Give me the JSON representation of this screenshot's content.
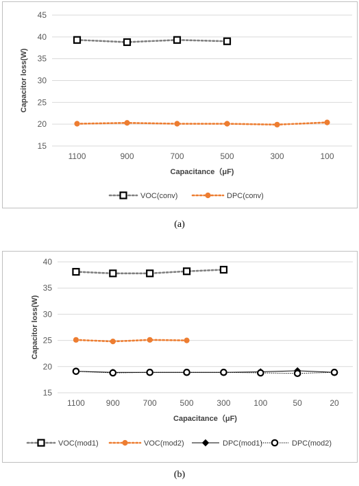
{
  "captions": {
    "a": "(a)",
    "b": "(b)"
  },
  "chart_data": [
    {
      "type": "line",
      "title": "",
      "xlabel": "Capacitance（μF)",
      "ylabel": "Capacitor loss(W)",
      "ylim": [
        15,
        45
      ],
      "yticks": [
        15,
        20,
        25,
        30,
        35,
        40,
        45
      ],
      "categories": [
        "1100",
        "900",
        "700",
        "500",
        "300",
        "100"
      ],
      "grid": "horizontal",
      "legend": "bottom",
      "series": [
        {
          "name": "VOC(conv)",
          "values": [
            39.3,
            38.8,
            39.3,
            39.0,
            null,
            null
          ],
          "color": "#7f7f7f",
          "marker": "square-open",
          "line": "dotted"
        },
        {
          "name": "DPC(conv)",
          "values": [
            20.1,
            20.3,
            20.1,
            20.1,
            19.9,
            20.4
          ],
          "color": "#ed7d31",
          "marker": "circle-filled",
          "line": "dotted"
        }
      ]
    },
    {
      "type": "line",
      "title": "",
      "xlabel": "Capacitance（μF)",
      "ylabel": "Capacitor loss(W)",
      "ylim": [
        15,
        40
      ],
      "yticks": [
        15,
        20,
        25,
        30,
        35,
        40
      ],
      "categories": [
        "1100",
        "900",
        "700",
        "500",
        "300",
        "100",
        "50",
        "20"
      ],
      "grid": "horizontal",
      "legend": "bottom",
      "series": [
        {
          "name": "VOC(mod1)",
          "values": [
            38.1,
            37.8,
            37.8,
            38.2,
            38.5,
            null,
            null,
            null
          ],
          "color": "#7f7f7f",
          "marker": "square-open",
          "line": "dotted"
        },
        {
          "name": "VOC(mod2)",
          "values": [
            25.1,
            24.8,
            25.1,
            25.0,
            null,
            null,
            null,
            null
          ],
          "color": "#ed7d31",
          "marker": "circle-filled",
          "line": "dotted"
        },
        {
          "name": "DPC(mod1)",
          "values": [
            19.1,
            18.9,
            18.9,
            18.9,
            18.9,
            19.0,
            19.2,
            18.9
          ],
          "color": "#000000",
          "marker": "diamond",
          "line": "solid-thin"
        },
        {
          "name": "DPC(mod2)",
          "values": [
            19.1,
            18.8,
            18.9,
            18.9,
            18.9,
            18.8,
            18.7,
            18.9
          ],
          "color": "#000000",
          "marker": "circle-open",
          "line": "dotted-black"
        }
      ]
    }
  ]
}
